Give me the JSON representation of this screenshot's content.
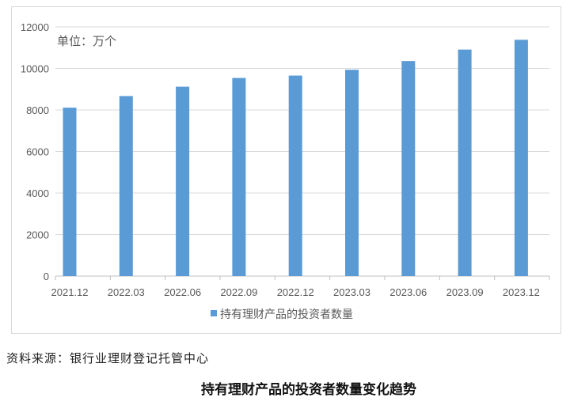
{
  "chart_data": {
    "type": "bar",
    "categories": [
      "2021.12",
      "2022.03",
      "2022.06",
      "2022.09",
      "2022.12",
      "2023.03",
      "2023.06",
      "2023.09",
      "2023.12"
    ],
    "series": [
      {
        "name": "持有理财产品的投资者数量",
        "values": [
          8110,
          8670,
          9120,
          9540,
          9655,
          9935,
          10356,
          10908,
          11379
        ],
        "color": "#5b9bd5"
      }
    ],
    "ylim": [
      0,
      12000
    ],
    "yticks": [
      "0",
      "2000",
      "4000",
      "6000",
      "8000",
      "10000",
      "12000"
    ],
    "unit_label": "单位：万个",
    "grid": true,
    "legend": "bottom"
  },
  "source": "资料来源：银行业理财登记托管中心",
  "caption": "持有理财产品的投资者数量变化趋势"
}
